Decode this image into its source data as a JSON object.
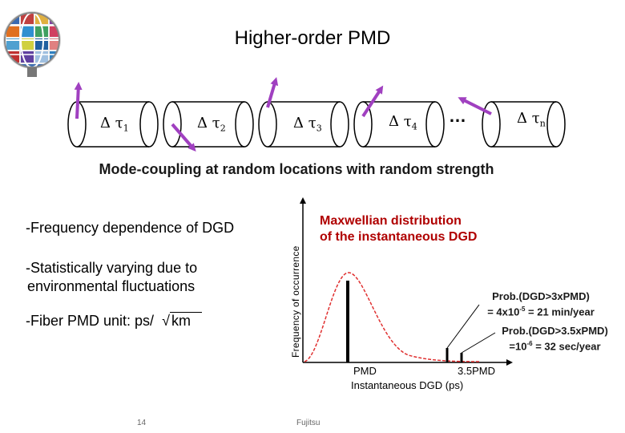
{
  "title": "Higher-order PMD",
  "segments": [
    {
      "symbol": "Δ τ",
      "sub": "1"
    },
    {
      "symbol": "Δ τ",
      "sub": "2"
    },
    {
      "symbol": "Δ τ",
      "sub": "3"
    },
    {
      "symbol": "Δ τ",
      "sub": "4"
    },
    {
      "symbol": "Δ τ",
      "sub": "n"
    }
  ],
  "ellipsis": "…",
  "subtitle": "Mode-coupling at random locations with random strength",
  "bullets": {
    "b1": "-Frequency dependence of DGD",
    "b2_line1": "-Statistically varying due to",
    "b2_line2": "environmental fluctuations",
    "b3_prefix": "-Fiber PMD unit: ps/",
    "b3_sqrt": "√",
    "b3_unit": "km"
  },
  "plot": {
    "ylabel": "Frequency of occurrence",
    "maxwell_line1": "Maxwellian distribution",
    "maxwell_line2": "of the instantaneous DGD",
    "prob1_line1": "Prob.(DGD>3xPMD)",
    "prob1_line2_a": "= 4x10",
    "prob1_line2_exp": "-5",
    "prob1_line2_b": " = 21 min/year",
    "prob2_line1": "Prob.(DGD>3.5xPMD)",
    "prob2_line2_a": "=10",
    "prob2_line2_exp": "-6",
    "prob2_line2_b": " = 32 sec/year",
    "x_pmd": "PMD",
    "x_35pmd": "3.5PMD",
    "xlabel": "Instantaneous DGD (ps)",
    "curve_color": "#e03030"
  },
  "footer": {
    "page": "14",
    "company": "Fujitsu"
  },
  "colors": {
    "arrow": "#a040c0",
    "maxwell": "#b00000"
  }
}
